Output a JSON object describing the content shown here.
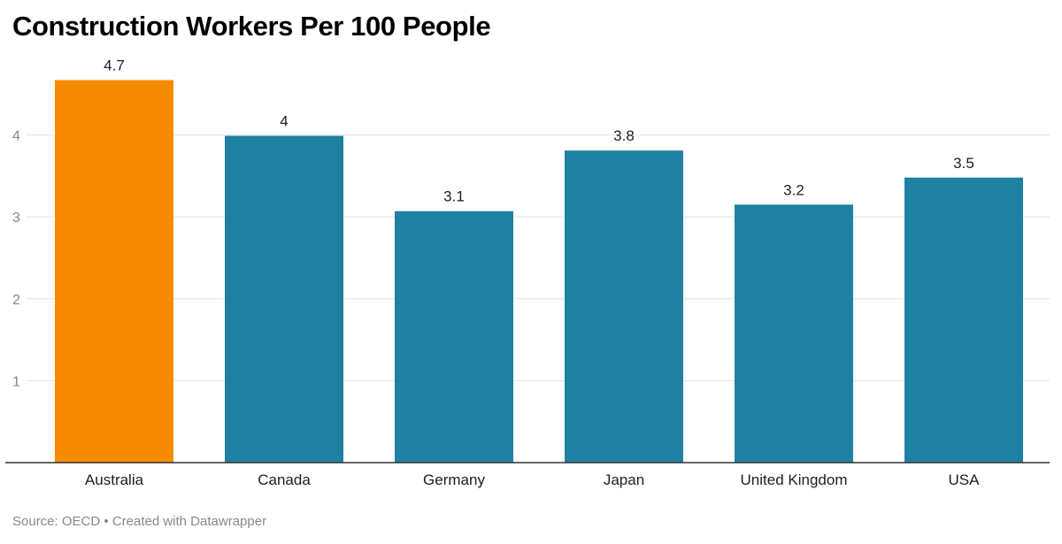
{
  "chart_data": {
    "type": "bar",
    "title": "Construction Workers Per 100 People",
    "categories": [
      "Australia",
      "Canada",
      "Germany",
      "Japan",
      "United Kingdom",
      "USA"
    ],
    "values": [
      4.67,
      3.99,
      3.07,
      3.81,
      3.15,
      3.48
    ],
    "value_labels": [
      "4.7",
      "4",
      "3.1",
      "3.8",
      "3.2",
      "3.5"
    ],
    "y_ticks": [
      1,
      2,
      3,
      4
    ],
    "ylim": [
      0,
      4.75
    ],
    "grid": true,
    "xlabel": "",
    "ylabel": "",
    "colors": {
      "highlight": "#f78b00",
      "default": "#1f81a1",
      "grid": "#e2e2e2",
      "axis": "#333333",
      "tick_label": "#888888"
    },
    "highlight_index": 0
  },
  "footer": {
    "source_text": "Source: OECD",
    "separator": "•",
    "credit_text": "Created with Datawrapper"
  }
}
